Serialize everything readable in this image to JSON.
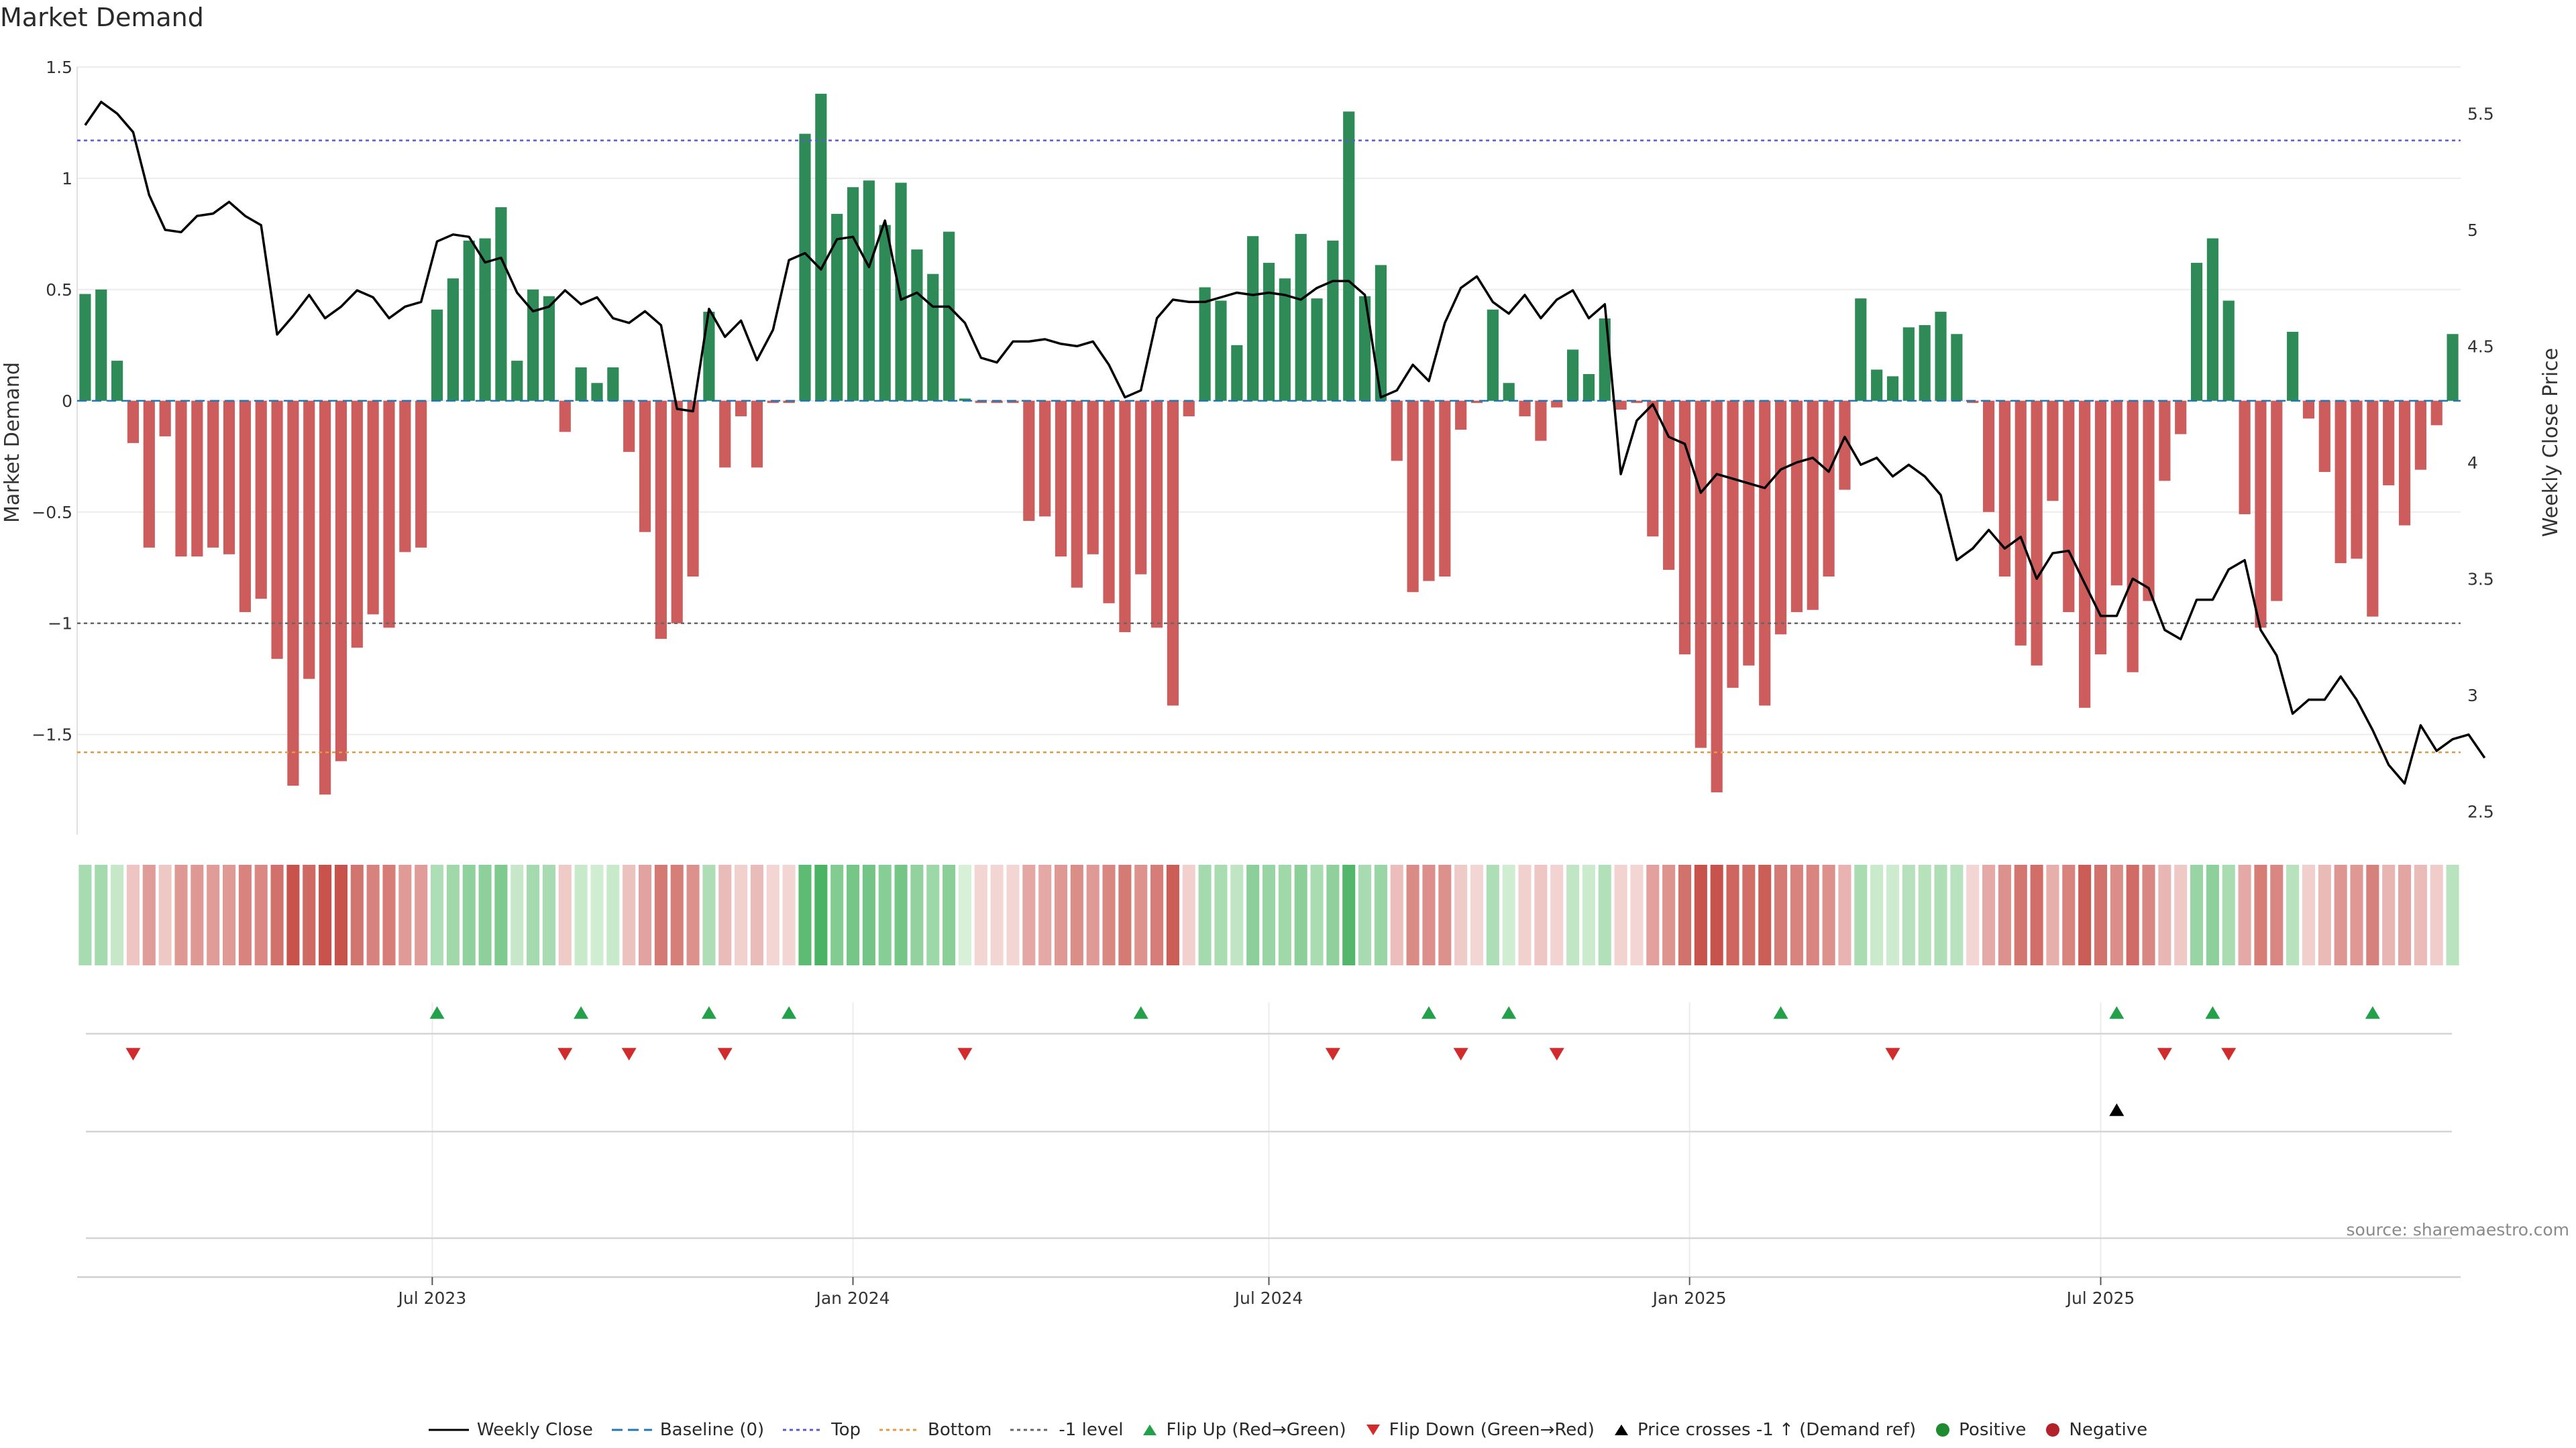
{
  "title": "Market Demand",
  "source": "source: sharemaestro.com",
  "chart_data": {
    "type": "bar",
    "title": "Market Demand",
    "ylabel": "Market Demand",
    "y2label": "Weekly Close Price",
    "ylim": [
      -1.95,
      1.5
    ],
    "y2lim": [
      2.4,
      5.7
    ],
    "yticks": [
      1.5,
      1,
      0.5,
      0,
      -0.5,
      -1,
      -1.5
    ],
    "ytick_labels": [
      "1.5",
      "1",
      "0.5",
      "0",
      "−0.5",
      "−1",
      "−1.5"
    ],
    "y2ticks": [
      5.5,
      5,
      4.5,
      4,
      3.5,
      3,
      2.5
    ],
    "y2tick_labels": [
      "5.5",
      "5",
      "4.5",
      "4",
      "3.5",
      "3",
      "2.5"
    ],
    "x_range_weeks": [
      0,
      144
    ],
    "x_ticks": [
      {
        "label": "Jul 2023",
        "week": 21.7
      },
      {
        "label": "Jan 2024",
        "week": 48
      },
      {
        "label": "Jul 2024",
        "week": 74
      },
      {
        "label": "Jan 2025",
        "week": 100.3
      },
      {
        "label": "Jul 2025",
        "week": 126
      }
    ],
    "reference_lines": {
      "top": 1.17,
      "bottom": -1.58,
      "minus_one": -1.0,
      "baseline": 0
    },
    "demand": [
      0.48,
      0.5,
      0.18,
      -0.19,
      -0.66,
      -0.16,
      -0.7,
      -0.7,
      -0.66,
      -0.69,
      -0.95,
      -0.89,
      -1.16,
      -1.73,
      -1.25,
      -1.77,
      -1.62,
      -1.11,
      -0.96,
      -1.02,
      -0.68,
      -0.66,
      0.41,
      0.55,
      0.72,
      0.73,
      0.87,
      0.18,
      0.5,
      0.47,
      -0.14,
      0.15,
      0.08,
      0.15,
      -0.23,
      -0.59,
      -1.07,
      -1.0,
      -0.79,
      0.4,
      -0.3,
      -0.07,
      -0.3,
      -0.01,
      -0.01,
      1.2,
      1.38,
      0.84,
      0.96,
      0.99,
      0.79,
      0.98,
      0.68,
      0.57,
      0.76,
      0.01,
      -0.01,
      -0.01,
      -0.01,
      -0.54,
      -0.52,
      -0.7,
      -0.84,
      -0.69,
      -0.91,
      -1.04,
      -0.78,
      -1.02,
      -1.37,
      -0.07,
      0.51,
      0.45,
      0.25,
      0.74,
      0.62,
      0.55,
      0.75,
      0.46,
      0.72,
      1.3,
      0.47,
      0.61,
      -0.27,
      -0.86,
      -0.81,
      -0.79,
      -0.13,
      -0.01,
      0.41,
      0.08,
      -0.07,
      -0.18,
      -0.03,
      0.23,
      0.12,
      0.37,
      -0.04,
      -0.01,
      -0.61,
      -0.76,
      -1.14,
      -1.56,
      -1.76,
      -1.29,
      -1.19,
      -1.37,
      -1.05,
      -0.95,
      -0.94,
      -0.79,
      -0.4,
      0.46,
      0.14,
      0.11,
      0.33,
      0.34,
      0.4,
      0.3,
      -0.01,
      -0.5,
      -0.79,
      -1.1,
      -1.19,
      -0.45,
      -0.95,
      -1.38,
      -1.14,
      -0.83,
      -1.22,
      -0.9,
      -0.36,
      -0.15,
      0.62,
      0.73,
      0.45,
      -0.51,
      -1.02,
      -0.9,
      0.31,
      -0.08,
      -0.32,
      -0.73,
      -0.71,
      -0.97,
      -0.38,
      -0.56,
      -0.31,
      -0.11,
      0.3
    ],
    "weekly_close": [
      5.45,
      5.55,
      5.5,
      5.42,
      5.15,
      5.0,
      4.99,
      5.06,
      5.07,
      5.12,
      5.06,
      5.02,
      4.55,
      4.63,
      4.72,
      4.62,
      4.67,
      4.74,
      4.71,
      4.62,
      4.67,
      4.69,
      4.95,
      4.98,
      4.97,
      4.86,
      4.88,
      4.73,
      4.65,
      4.67,
      4.74,
      4.68,
      4.71,
      4.62,
      4.6,
      4.65,
      4.59,
      4.23,
      4.22,
      4.66,
      4.54,
      4.61,
      4.44,
      4.57,
      4.87,
      4.9,
      4.83,
      4.96,
      4.97,
      4.84,
      5.04,
      4.7,
      4.73,
      4.67,
      4.67,
      4.6,
      4.45,
      4.43,
      4.52,
      4.52,
      4.53,
      4.51,
      4.5,
      4.52,
      4.42,
      4.28,
      4.31,
      4.62,
      4.7,
      4.69,
      4.69,
      4.71,
      4.73,
      4.72,
      4.73,
      4.72,
      4.7,
      4.75,
      4.78,
      4.78,
      4.72,
      4.28,
      4.31,
      4.42,
      4.35,
      4.6,
      4.75,
      4.8,
      4.69,
      4.64,
      4.72,
      4.62,
      4.7,
      4.74,
      4.62,
      4.68,
      3.95,
      4.18,
      4.25,
      4.11,
      4.08,
      3.87,
      3.95,
      3.93,
      3.91,
      3.89,
      3.97,
      4.0,
      4.02,
      3.96,
      4.11,
      3.99,
      4.02,
      3.94,
      3.99,
      3.94,
      3.86,
      3.58,
      3.63,
      3.71,
      3.63,
      3.68,
      3.5,
      3.61,
      3.62,
      3.48,
      3.34,
      3.34,
      3.5,
      3.46,
      3.28,
      3.24,
      3.41,
      3.41,
      3.54,
      3.58,
      3.28,
      3.17,
      2.92,
      2.98,
      2.98,
      3.08,
      2.98,
      2.85,
      2.7,
      2.62,
      2.87,
      2.76,
      2.81,
      2.83,
      2.73
    ],
    "flip_up_weeks": [
      22,
      31,
      39,
      44,
      66,
      84,
      89,
      106,
      127,
      133,
      143
    ],
    "flip_down_weeks": [
      3,
      30,
      34,
      40,
      55,
      78,
      86,
      92,
      113,
      130,
      134
    ],
    "price_cross_up_weeks": [
      127
    ],
    "colors": {
      "positive": "#2e8b57",
      "negative": "#cd5c5c",
      "price": "#000000",
      "top": "#5a5ad2",
      "bottom": "#e69a3c",
      "minus_one": "#666666",
      "baseline": "#1f77b4",
      "flip_up": "#23a04a",
      "flip_down": "#d12b2b",
      "cross": "#000000",
      "legend_positive": "#1e8c2e",
      "legend_negative": "#b22228"
    }
  },
  "legend": [
    {
      "label": "Weekly Close",
      "icon": "line-solid-black"
    },
    {
      "label": "Baseline (0)",
      "icon": "line-dashed-blue"
    },
    {
      "label": "Top",
      "icon": "line-dotted-purple"
    },
    {
      "label": "Bottom",
      "icon": "line-dotted-orange"
    },
    {
      "label": "-1 level",
      "icon": "line-dotted-gray"
    },
    {
      "label": "Flip Up (Red→Green)",
      "icon": "triangle-up-green"
    },
    {
      "label": "Flip Down (Green→Red)",
      "icon": "triangle-down-red"
    },
    {
      "label": "Price crosses -1 ↑ (Demand ref)",
      "icon": "triangle-up-black"
    },
    {
      "label": "Positive",
      "icon": "circle-green"
    },
    {
      "label": "Negative",
      "icon": "circle-red"
    }
  ]
}
